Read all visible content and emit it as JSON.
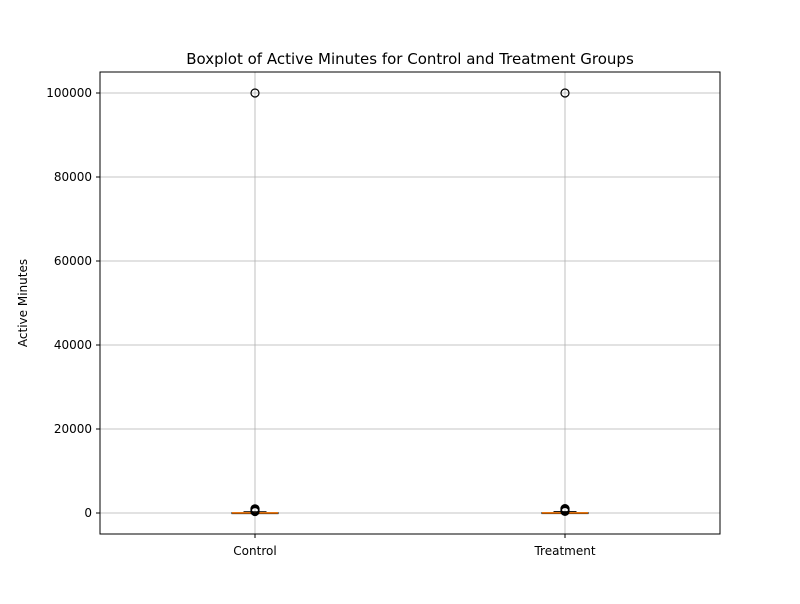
{
  "chart_data": {
    "type": "boxplot",
    "title": "Boxplot of Active Minutes for Control and Treatment Groups",
    "xlabel": "",
    "ylabel": "Active Minutes",
    "ylim": [
      -5000,
      105000
    ],
    "yticks": [
      0,
      20000,
      40000,
      60000,
      80000,
      100000
    ],
    "ytick_labels": [
      "0",
      "20000",
      "40000",
      "60000",
      "80000",
      "100000"
    ],
    "grid": true,
    "categories": [
      "Control",
      "Treatment"
    ],
    "groups": [
      {
        "label": "Control",
        "q1": 0,
        "median": 30,
        "q3": 90,
        "whisker_low": 0,
        "whisker_high": 300,
        "outliers": [
          350,
          450,
          600,
          800,
          1000,
          100000
        ]
      },
      {
        "label": "Treatment",
        "q1": 0,
        "median": 35,
        "q3": 100,
        "whisker_low": 0,
        "whisker_high": 320,
        "outliers": [
          380,
          500,
          650,
          850,
          1050,
          100000
        ]
      }
    ],
    "colors": {
      "box": "#000000",
      "median": "#ff7f0e",
      "grid": "#b0b0b0",
      "outlier_edge": "#000000"
    }
  }
}
